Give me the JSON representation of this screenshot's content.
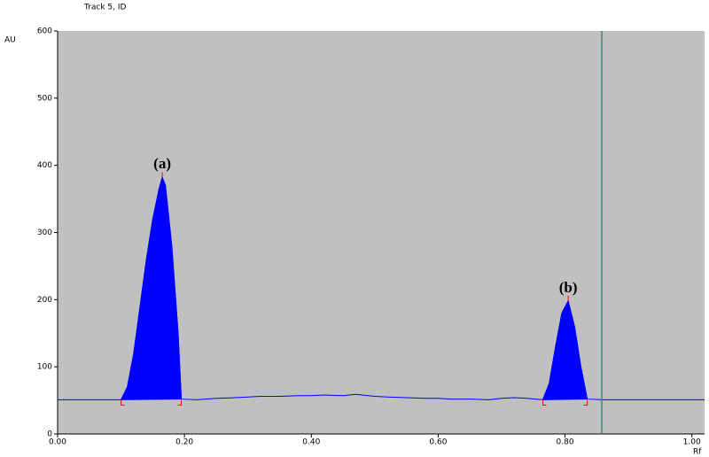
{
  "chart_data": {
    "type": "line",
    "title": "Track 5, ID",
    "y_label": "AU",
    "x_label": "Rf",
    "xlim": [
      0,
      1.02
    ],
    "ylim": [
      0,
      600
    ],
    "xticks": [
      {
        "value": 0,
        "label": "0.00"
      },
      {
        "value": 0.2,
        "label": "0.20"
      },
      {
        "value": 0.4,
        "label": "0.40"
      },
      {
        "value": 0.6,
        "label": "0.60"
      },
      {
        "value": 0.8,
        "label": "0.80"
      },
      {
        "value": 1,
        "label": "1.00"
      }
    ],
    "yticks": [
      0,
      100,
      200,
      300,
      400,
      500,
      600
    ],
    "series": [
      {
        "name": "Track 5",
        "color": "#0000ff",
        "x": [
          0,
          0.1,
          0.11,
          0.12,
          0.13,
          0.14,
          0.15,
          0.16,
          0.165,
          0.17,
          0.18,
          0.19,
          0.195,
          0.22,
          0.25,
          0.28,
          0.3,
          0.32,
          0.35,
          0.38,
          0.4,
          0.42,
          0.45,
          0.47,
          0.5,
          0.52,
          0.55,
          0.58,
          0.6,
          0.62,
          0.65,
          0.68,
          0.7,
          0.72,
          0.74,
          0.765,
          0.775,
          0.785,
          0.795,
          0.805,
          0.815,
          0.825,
          0.835,
          0.86,
          1.02
        ],
        "values": [
          51,
          51,
          70,
          120,
          190,
          260,
          320,
          365,
          382,
          370,
          280,
          150,
          52,
          51,
          53,
          54,
          55,
          56,
          56,
          57,
          57,
          58,
          57,
          59,
          56,
          55,
          54,
          53,
          53,
          52,
          52,
          51,
          53,
          54,
          53,
          51,
          75,
          130,
          180,
          198,
          160,
          100,
          52,
          51,
          51
        ]
      }
    ],
    "peaks": [
      {
        "label": "(a)",
        "start": 0.1,
        "end": 0.195,
        "x": 0.165,
        "y": 382
      },
      {
        "label": "(b)",
        "start": 0.765,
        "end": 0.835,
        "x": 0.805,
        "y": 198
      }
    ],
    "marker_x": 0.858,
    "marker_color": "#2e8b8b",
    "plot_background": "#c0c0c0"
  }
}
